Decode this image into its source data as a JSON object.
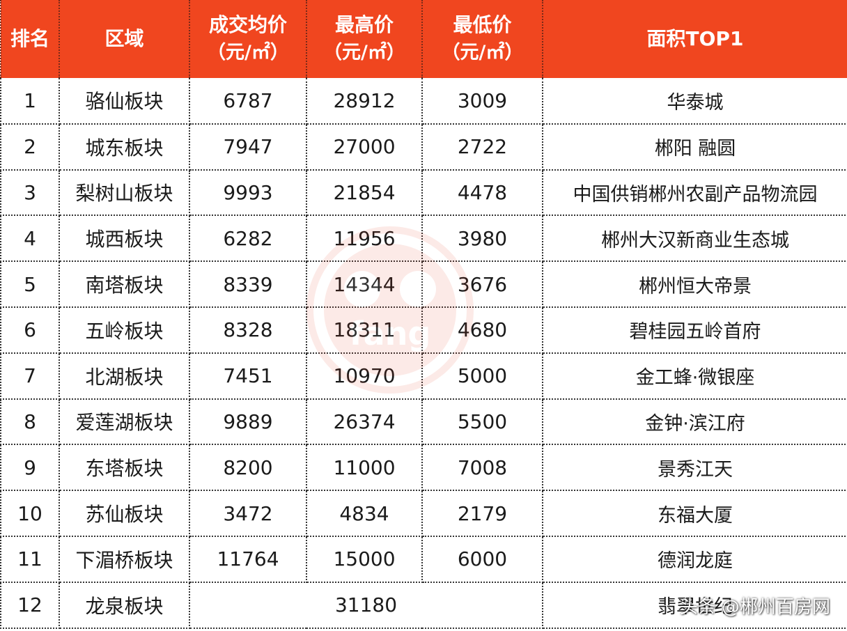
{
  "table": {
    "headers": [
      {
        "line1": "排名",
        "line2": ""
      },
      {
        "line1": "区域",
        "line2": ""
      },
      {
        "line1": "成交均价",
        "line2": "（元/㎡）"
      },
      {
        "line1": "最高价",
        "line2": "（元/㎡）"
      },
      {
        "line1": "最低价",
        "line2": "（元/㎡）"
      },
      {
        "line1": "面积TOP1",
        "line2": ""
      }
    ],
    "rows": [
      {
        "rank": "1",
        "area": "骆仙板块",
        "avg": "6787",
        "max": "28912",
        "min": "3009",
        "top1": "华泰城"
      },
      {
        "rank": "2",
        "area": "城东板块",
        "avg": "7947",
        "max": "27000",
        "min": "2722",
        "top1": "郴阳 融圆"
      },
      {
        "rank": "3",
        "area": "梨树山板块",
        "avg": "9993",
        "max": "21854",
        "min": "4478",
        "top1": "中国供销郴州农副产品物流园"
      },
      {
        "rank": "4",
        "area": "城西板块",
        "avg": "6282",
        "max": "11956",
        "min": "3980",
        "top1": "郴州大汉新商业生态城"
      },
      {
        "rank": "5",
        "area": "南塔板块",
        "avg": "8339",
        "max": "14344",
        "min": "3676",
        "top1": "郴州恒大帝景"
      },
      {
        "rank": "6",
        "area": "五岭板块",
        "avg": "8328",
        "max": "18311",
        "min": "4680",
        "top1": "碧桂园五岭首府"
      },
      {
        "rank": "7",
        "area": "北湖板块",
        "avg": "7451",
        "max": "10970",
        "min": "5000",
        "top1": "金工蜂·微银座"
      },
      {
        "rank": "8",
        "area": "爱莲湖板块",
        "avg": "9889",
        "max": "26374",
        "min": "5500",
        "top1": "金钟·滨江府"
      },
      {
        "rank": "9",
        "area": "东塔板块",
        "avg": "8200",
        "max": "11000",
        "min": "7008",
        "top1": "景秀江天"
      },
      {
        "rank": "10",
        "area": "苏仙板块",
        "avg": "3472",
        "max": "4834",
        "min": "2179",
        "top1": "东福大厦"
      },
      {
        "rank": "11",
        "area": "下湄桥板块",
        "avg": "11764",
        "max": "15000",
        "min": "6000",
        "top1": "德润龙庭"
      }
    ],
    "last_row": {
      "rank": "12",
      "area": "龙泉板块",
      "merged": "31180",
      "top1": "翡翠世纪"
    }
  },
  "watermark_text": "fang",
  "credit": "头条 @郴州百房网",
  "colors": {
    "header_bg": "#f0461f",
    "header_text": "#ffffff",
    "body_text": "#1a1a1a"
  }
}
